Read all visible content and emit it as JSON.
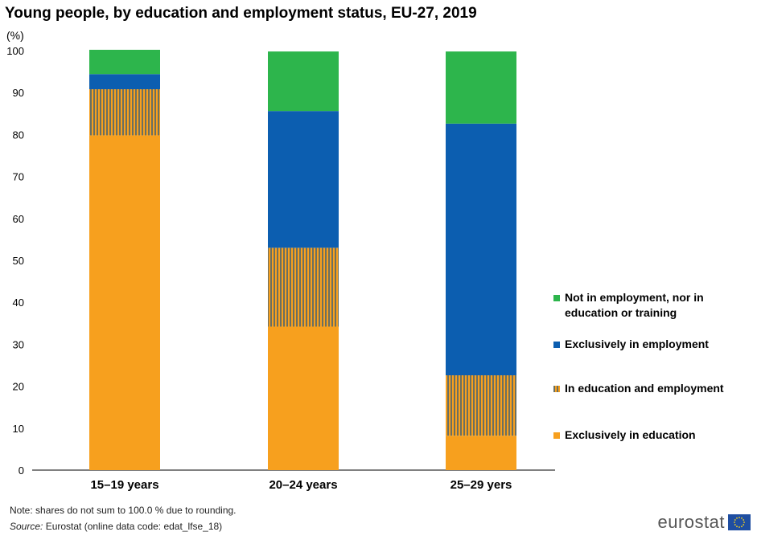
{
  "chart_data": {
    "type": "bar",
    "stacked": true,
    "title": "Young people, by education and employment status, EU-27, 2019",
    "ylabel": "(%)",
    "ylim": [
      0,
      100
    ],
    "yticks": [
      0,
      10,
      20,
      30,
      40,
      50,
      60,
      70,
      80,
      90,
      100
    ],
    "categories": [
      "15–19 years",
      "20–24 years",
      "25–29 yers"
    ],
    "series": [
      {
        "name": "Exclusively in education",
        "color": "#f7a01e",
        "values": [
          79.8,
          34.2,
          8.2
        ]
      },
      {
        "name": "In education and employment",
        "color": "#7a7a5a",
        "pattern": "vertical-stripes",
        "values": [
          11.0,
          18.8,
          14.4
        ]
      },
      {
        "name": "Exclusively in employment",
        "color": "#0c5eb0",
        "values": [
          3.6,
          32.6,
          60.0
        ]
      },
      {
        "name": "Not in employment, nor in education or training",
        "color": "#2db54c",
        "values": [
          5.8,
          14.2,
          17.2
        ]
      }
    ],
    "legend_position": "right",
    "grid": false
  },
  "legend": [
    {
      "label": "Not in employment, nor in education or training",
      "color": "#2db54c"
    },
    {
      "label": "Exclusively in employment",
      "color": "#0c5eb0"
    },
    {
      "label": "In education and employment",
      "color": "#7a7a5a"
    },
    {
      "label": "Exclusively in education",
      "color": "#f7a01e"
    }
  ],
  "footer": {
    "note": "Note: shares do not sum to 100.0 % due to rounding.",
    "source_label": "Source:",
    "source_text": " Eurostat (online data code: edat_lfse_18)"
  },
  "brand": {
    "text": "eurostat",
    "flag_icon": "eu-flag-icon"
  }
}
